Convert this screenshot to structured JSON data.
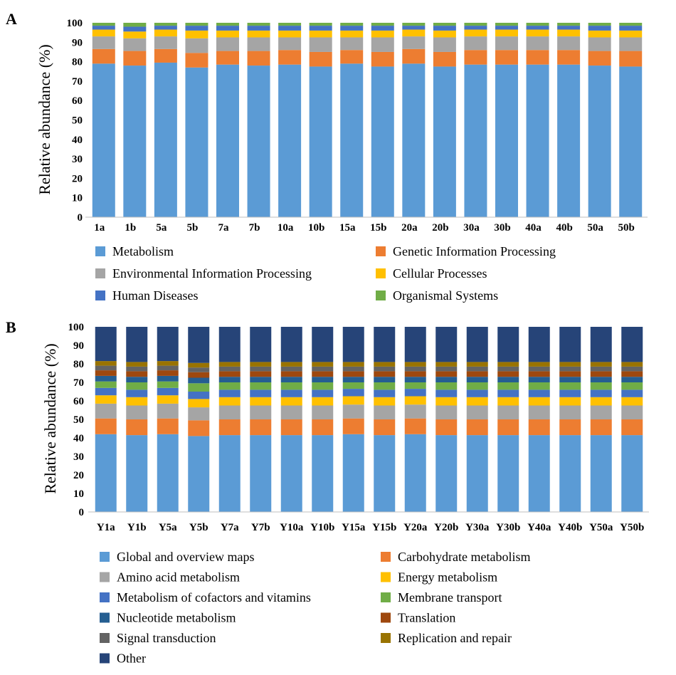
{
  "colors": {
    "metabolism": "#5b9bd5",
    "genetic": "#ed7d31",
    "environmental": "#a5a5a5",
    "cellular": "#ffc000",
    "human": "#4472c4",
    "organismal": "#70ad47",
    "nucleotide": "#255e91",
    "translation": "#9e480e",
    "signal": "#636363",
    "replication": "#997300",
    "other": "#264478"
  },
  "chart_data": [
    {
      "type": "bar",
      "stacked": true,
      "panel": "A",
      "ylabel": "Relative abundance (%)",
      "ylim": [
        0,
        100
      ],
      "yticks": [
        0,
        10,
        20,
        30,
        40,
        50,
        60,
        70,
        80,
        90,
        100
      ],
      "categories": [
        "1a",
        "1b",
        "5a",
        "5b",
        "7a",
        "7b",
        "10a",
        "10b",
        "15a",
        "15b",
        "20a",
        "20b",
        "30a",
        "30b",
        "40a",
        "40b",
        "50a",
        "50b"
      ],
      "series": [
        {
          "name": "Metabolism",
          "color_key": "metabolism",
          "values": [
            79,
            78,
            79.5,
            77,
            78.5,
            78,
            78.5,
            77.5,
            79,
            77.5,
            79,
            77.5,
            78.5,
            78.5,
            78.5,
            78.5,
            78,
            77.5
          ]
        },
        {
          "name": "Genetic Information Processing",
          "color_key": "genetic",
          "values": [
            7.5,
            7.5,
            7,
            7.5,
            7,
            7.5,
            7.5,
            7.5,
            7,
            7.5,
            7.5,
            7.5,
            7.5,
            7.5,
            7.5,
            7.5,
            7.5,
            8
          ]
        },
        {
          "name": "Environmental Information Processing",
          "color_key": "environmental",
          "values": [
            6.5,
            6.5,
            6.5,
            7.5,
            7,
            7,
            6.5,
            7.5,
            6.5,
            7.5,
            6.5,
            7.5,
            7,
            7,
            7,
            7,
            7,
            7
          ]
        },
        {
          "name": "Cellular Processes",
          "color_key": "cellular",
          "values": [
            3.5,
            3.5,
            3.5,
            4,
            3.5,
            3.5,
            3.5,
            3.5,
            3.5,
            3.5,
            3.5,
            3.5,
            3.5,
            3.5,
            3.5,
            3.5,
            3.5,
            3.5
          ]
        },
        {
          "name": "Human Diseases",
          "color_key": "human",
          "values": [
            2,
            2.5,
            2,
            2.5,
            2.5,
            2.5,
            2.5,
            2.5,
            2.5,
            2.5,
            2,
            2.5,
            2,
            2,
            2,
            2,
            2.5,
            2.5
          ]
        },
        {
          "name": "Organismal Systems",
          "color_key": "organismal",
          "values": [
            1.5,
            2,
            1.5,
            1.5,
            1.5,
            1.5,
            1.5,
            1.5,
            1.5,
            1.5,
            1.5,
            1.5,
            1.5,
            1.5,
            1.5,
            1.5,
            1.5,
            1.5
          ]
        }
      ],
      "legend_placement": "bottom",
      "grid": false
    },
    {
      "type": "bar",
      "stacked": true,
      "panel": "B",
      "ylabel": "Relative abundance (%)",
      "ylim": [
        0,
        100
      ],
      "yticks": [
        0,
        10,
        20,
        30,
        40,
        50,
        60,
        70,
        80,
        90,
        100
      ],
      "categories": [
        "Y1a",
        "Y1b",
        "Y5a",
        "Y5b",
        "Y7a",
        "Y7b",
        "Y10a",
        "Y10b",
        "Y15a",
        "Y15b",
        "Y20a",
        "Y20b",
        "Y30a",
        "Y30b",
        "Y40a",
        "Y40b",
        "Y50a",
        "Y50b"
      ],
      "series": [
        {
          "name": "Global and overview maps",
          "color_key": "metabolism",
          "values": [
            42,
            41.5,
            42,
            41,
            41.5,
            41.5,
            41.5,
            41.5,
            42,
            41.5,
            42,
            41.5,
            41.5,
            41.5,
            41.5,
            41.5,
            41.5,
            41.5
          ]
        },
        {
          "name": "Carbohydrate metabolism",
          "color_key": "genetic",
          "values": [
            8.5,
            8.5,
            8.5,
            8.5,
            8.5,
            8.5,
            8.5,
            8.5,
            8.5,
            8.5,
            8.5,
            8.5,
            8.5,
            8.5,
            8.5,
            8.5,
            8.5,
            8.5
          ]
        },
        {
          "name": "Amino acid metabolism",
          "color_key": "environmental",
          "values": [
            8,
            7.5,
            8,
            7,
            7.5,
            7.5,
            7.5,
            7.5,
            7.5,
            7.5,
            7.5,
            7.5,
            7.5,
            7.5,
            7.5,
            7.5,
            7.5,
            7.5
          ]
        },
        {
          "name": "Energy metabolism",
          "color_key": "cellular",
          "values": [
            4.5,
            4.5,
            4.5,
            4.5,
            4.5,
            4.5,
            4.5,
            4.5,
            4.5,
            4.5,
            4.5,
            4.5,
            4.5,
            4.5,
            4.5,
            4.5,
            4.5,
            4.5
          ]
        },
        {
          "name": "Metabolism of cofactors and vitamins",
          "color_key": "human",
          "values": [
            4,
            4,
            4,
            4,
            4,
            4,
            4,
            4,
            4,
            4,
            4,
            4,
            4,
            4,
            4,
            4,
            4,
            4
          ]
        },
        {
          "name": "Membrane transport",
          "color_key": "organismal",
          "values": [
            3.5,
            4,
            3.5,
            4.5,
            4,
            4,
            4,
            4,
            3.5,
            4,
            3.5,
            4,
            4,
            4,
            4,
            4,
            4,
            4
          ]
        },
        {
          "name": "Nucleotide metabolism",
          "color_key": "nucleotide",
          "values": [
            3,
            3,
            3,
            3,
            3,
            3,
            3,
            3,
            3,
            3,
            3,
            3,
            3,
            3,
            3,
            3,
            3,
            3
          ]
        },
        {
          "name": "Translation",
          "color_key": "translation",
          "values": [
            3,
            3,
            3,
            3,
            3,
            3,
            3,
            3,
            3,
            3,
            3,
            3,
            3,
            3,
            3,
            3,
            3,
            3
          ]
        },
        {
          "name": "Signal transduction",
          "color_key": "signal",
          "values": [
            2.5,
            2.5,
            2.5,
            2.5,
            2.5,
            2.5,
            2.5,
            2.5,
            2.5,
            2.5,
            2.5,
            2.5,
            2.5,
            2.5,
            2.5,
            2.5,
            2.5,
            2.5
          ]
        },
        {
          "name": "Replication and repair",
          "color_key": "replication",
          "values": [
            2.5,
            2.5,
            2.5,
            2.5,
            2.5,
            2.5,
            2.5,
            2.5,
            2.5,
            2.5,
            2.5,
            2.5,
            2.5,
            2.5,
            2.5,
            2.5,
            2.5,
            2.5
          ]
        },
        {
          "name": "Other",
          "color_key": "other",
          "values": [
            18.5,
            19,
            18.5,
            19.5,
            19,
            19,
            19,
            19,
            19,
            19,
            19,
            19,
            19,
            19,
            19,
            19,
            19,
            19
          ]
        }
      ],
      "legend_placement": "bottom",
      "grid": false
    }
  ]
}
